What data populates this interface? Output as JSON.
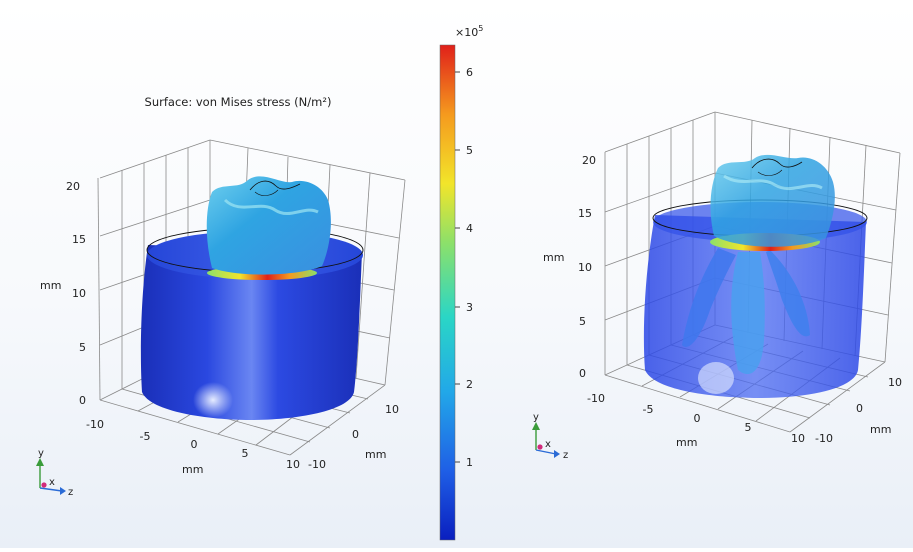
{
  "plot_title": "Surface: von Mises stress (N/m²)",
  "colorbar": {
    "multiplier_base": "×10",
    "multiplier_exp": "5",
    "ticks": [
      "6",
      "5",
      "4",
      "3",
      "2",
      "1"
    ],
    "range": [
      0,
      6.3
    ],
    "colors": [
      "#0a1fbf",
      "#1f5fe6",
      "#22a8e8",
      "#2ad6c6",
      "#8ce06a",
      "#f2e52a",
      "#f59a1e",
      "#e0201a"
    ]
  },
  "left_view": {
    "y_ticks": [
      "0",
      "5",
      "10",
      "15",
      "20"
    ],
    "x_ticks": [
      "-10",
      "-5",
      "0",
      "5",
      "10"
    ],
    "z_ticks": [
      "10",
      "0",
      "-10"
    ],
    "y_label": "mm",
    "x_label": "mm",
    "z_label": "mm",
    "triad": {
      "y": "y",
      "x": "x",
      "z": "z"
    }
  },
  "right_view": {
    "y_ticks": [
      "0",
      "5",
      "10",
      "15",
      "20"
    ],
    "x_ticks": [
      "-10",
      "-5",
      "0",
      "5",
      "10"
    ],
    "z_ticks": [
      "10",
      "0",
      "-10"
    ],
    "y_label": "mm",
    "x_label": "mm",
    "z_label": "mm",
    "triad": {
      "y": "y",
      "x": "x",
      "z": "z"
    }
  }
}
